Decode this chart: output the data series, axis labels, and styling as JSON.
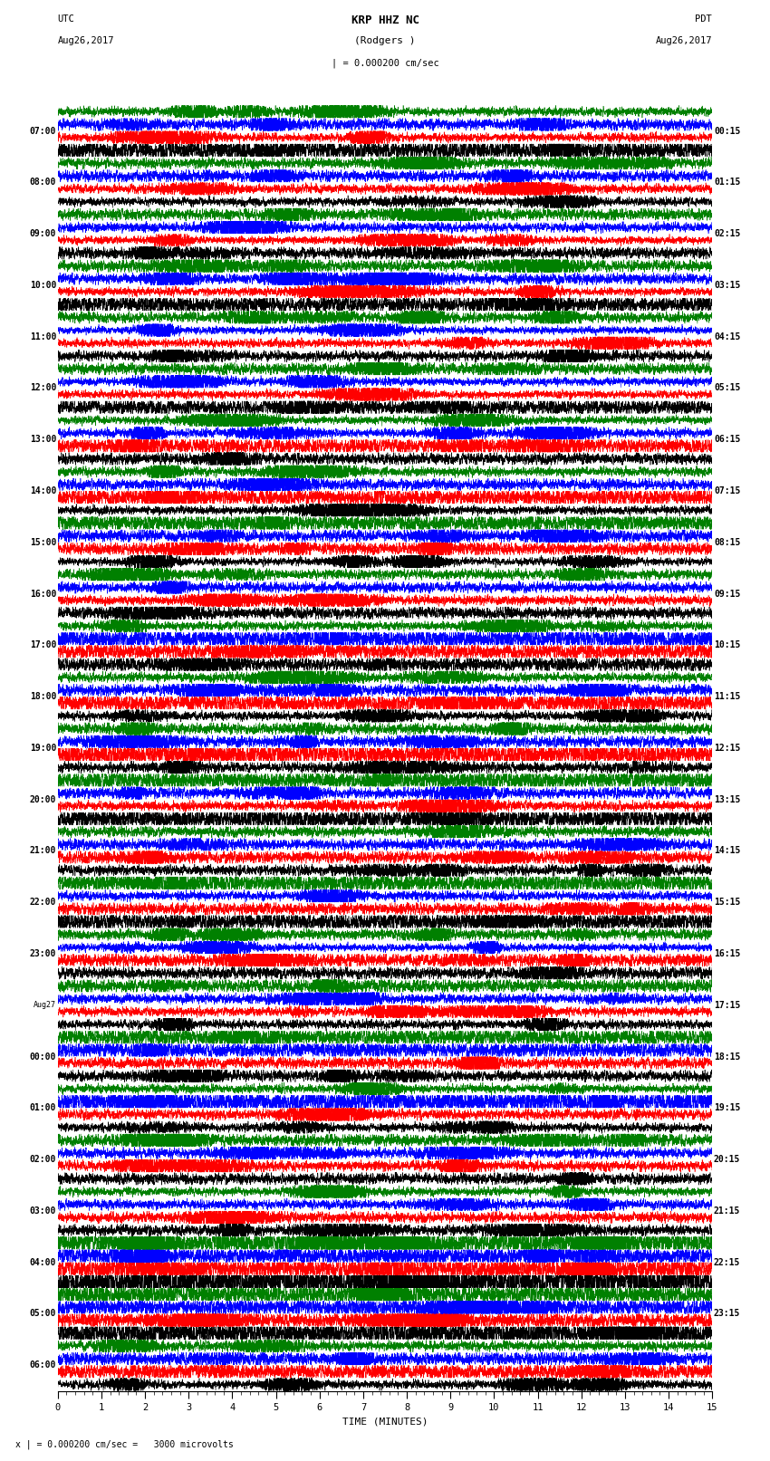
{
  "title_line1": "KRP HHZ NC",
  "title_line2": "(Rodgers )",
  "title_scale": "| = 0.000200 cm/sec",
  "label_utc": "UTC",
  "label_date_left": "Aug26,2017",
  "label_pdt": "PDT",
  "label_date_right": "Aug26,2017",
  "footer_scale": "x | = 0.000200 cm/sec =   3000 microvolts",
  "xlabel": "TIME (MINUTES)",
  "left_times": [
    "07:00",
    "08:00",
    "09:00",
    "10:00",
    "11:00",
    "12:00",
    "13:00",
    "14:00",
    "15:00",
    "16:00",
    "17:00",
    "18:00",
    "19:00",
    "20:00",
    "21:00",
    "22:00",
    "23:00",
    "Aug27",
    "00:00",
    "01:00",
    "02:00",
    "03:00",
    "04:00",
    "05:00",
    "06:00"
  ],
  "right_times": [
    "00:15",
    "01:15",
    "02:15",
    "03:15",
    "04:15",
    "05:15",
    "06:15",
    "07:15",
    "08:15",
    "09:15",
    "10:15",
    "11:15",
    "12:15",
    "13:15",
    "14:15",
    "15:15",
    "16:15",
    "17:15",
    "18:15",
    "19:15",
    "20:15",
    "21:15",
    "22:15",
    "23:15"
  ],
  "n_rows": 25,
  "n_traces_per_row": 4,
  "colors": [
    "black",
    "red",
    "blue",
    "green"
  ],
  "minutes": 15,
  "samples_per_minute": 600,
  "noise_amplitude": 0.38,
  "fig_width": 8.5,
  "fig_height": 16.13,
  "bg_color": "white",
  "seed": 42,
  "large_amp_rows": [
    22,
    23
  ],
  "large_amp_scale": 2.2
}
